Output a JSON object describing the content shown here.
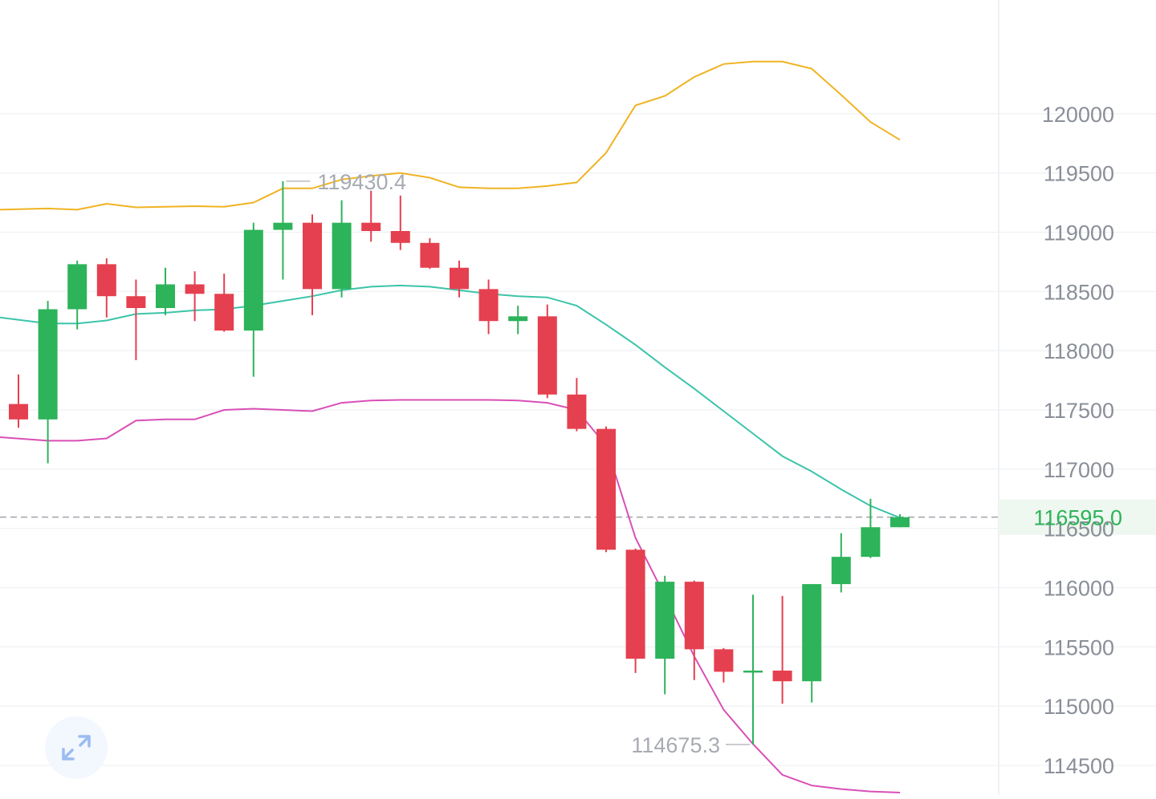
{
  "chart_data": {
    "type": "candlestick",
    "y_axis": {
      "ticks": [
        114500,
        115000,
        115500,
        116000,
        116500,
        117000,
        117500,
        118000,
        118500,
        119000,
        119500,
        120000
      ],
      "tick_labels": [
        "114500",
        "115000",
        "115500",
        "116000",
        "116500",
        "117000",
        "117500",
        "118000",
        "118500",
        "119000",
        "119500",
        "120000"
      ],
      "position": "right",
      "ylim": [
        114250,
        120960
      ]
    },
    "current_price": {
      "value": 116595.0,
      "label": "116595.0",
      "color": "#2db35a"
    },
    "high_marker": {
      "value": 119430.4,
      "label": "119430.4",
      "candle_index": 9
    },
    "low_marker": {
      "value": 114675.3,
      "label": "114675.3",
      "candle_index": 25
    },
    "colors": {
      "up": "#2db35a",
      "down": "#e5404f",
      "upper_band": "#f0b323",
      "middle_band": "#3cc4a9",
      "lower_band": "#d94fb7",
      "grid": "#eef0f3"
    },
    "candles": [
      {
        "o": 117550,
        "h": 117800,
        "l": 117350,
        "c": 117420
      },
      {
        "o": 117420,
        "h": 118420,
        "l": 117050,
        "c": 118350
      },
      {
        "o": 118350,
        "h": 118760,
        "l": 118180,
        "c": 118730
      },
      {
        "o": 118730,
        "h": 118780,
        "l": 118280,
        "c": 118460
      },
      {
        "o": 118460,
        "h": 118600,
        "l": 117920,
        "c": 118360
      },
      {
        "o": 118360,
        "h": 118700,
        "l": 118300,
        "c": 118560
      },
      {
        "o": 118560,
        "h": 118670,
        "l": 118250,
        "c": 118480
      },
      {
        "o": 118480,
        "h": 118650,
        "l": 118160,
        "c": 118170
      },
      {
        "o": 118170,
        "h": 119080,
        "l": 117780,
        "c": 119020
      },
      {
        "o": 119020,
        "h": 119430.4,
        "l": 118600,
        "c": 119080
      },
      {
        "o": 119080,
        "h": 119150,
        "l": 118300,
        "c": 118520
      },
      {
        "o": 118520,
        "h": 119270,
        "l": 118450,
        "c": 119080
      },
      {
        "o": 119080,
        "h": 119350,
        "l": 118920,
        "c": 119010
      },
      {
        "o": 119010,
        "h": 119310,
        "l": 118850,
        "c": 118910
      },
      {
        "o": 118910,
        "h": 118950,
        "l": 118690,
        "c": 118700
      },
      {
        "o": 118700,
        "h": 118760,
        "l": 118450,
        "c": 118520
      },
      {
        "o": 118520,
        "h": 118600,
        "l": 118140,
        "c": 118250
      },
      {
        "o": 118250,
        "h": 118380,
        "l": 118140,
        "c": 118290
      },
      {
        "o": 118290,
        "h": 118390,
        "l": 117600,
        "c": 117630
      },
      {
        "o": 117630,
        "h": 117770,
        "l": 117320,
        "c": 117340
      },
      {
        "o": 117340,
        "h": 117360,
        "l": 116300,
        "c": 116320
      },
      {
        "o": 116320,
        "h": 116330,
        "l": 115280,
        "c": 115400
      },
      {
        "o": 115400,
        "h": 116100,
        "l": 115100,
        "c": 116050
      },
      {
        "o": 116050,
        "h": 116060,
        "l": 115220,
        "c": 115480
      },
      {
        "o": 115480,
        "h": 115490,
        "l": 115200,
        "c": 115290
      },
      {
        "o": 115290,
        "h": 115940,
        "l": 114675.3,
        "c": 115300
      },
      {
        "o": 115300,
        "h": 115930,
        "l": 115020,
        "c": 115210
      },
      {
        "o": 115210,
        "h": 116030,
        "l": 115030,
        "c": 116030
      },
      {
        "o": 116030,
        "h": 116460,
        "l": 115960,
        "c": 116260
      },
      {
        "o": 116260,
        "h": 116750,
        "l": 116250,
        "c": 116510
      },
      {
        "o": 116510,
        "h": 116620,
        "l": 116510,
        "c": 116595
      }
    ],
    "upper_band": [
      119190,
      119200,
      119190,
      119240,
      119210,
      119215,
      119220,
      119215,
      119250,
      119370,
      119370,
      119445,
      119475,
      119500,
      119460,
      119380,
      119370,
      119370,
      119390,
      119420,
      119670,
      120070,
      120150,
      120310,
      120420,
      120440,
      120440,
      120380,
      120160,
      119930,
      119780
    ],
    "middle_band": [
      118280,
      118230,
      118230,
      118255,
      118310,
      118320,
      118340,
      118350,
      118380,
      118420,
      118460,
      118510,
      118540,
      118550,
      118540,
      118510,
      118480,
      118460,
      118450,
      118380,
      118220,
      118050,
      117860,
      117680,
      117490,
      117300,
      117110,
      116980,
      116830,
      116690,
      116590
    ],
    "lower_band": [
      117270,
      117240,
      117240,
      117260,
      117410,
      117420,
      117420,
      117500,
      117510,
      117500,
      117490,
      117560,
      117580,
      117585,
      117585,
      117585,
      117585,
      117580,
      117560,
      117500,
      117200,
      116420,
      115930,
      115420,
      114970,
      114680,
      114420,
      114330,
      114300,
      114280,
      114270
    ]
  },
  "controls": {
    "expand_icon": "expand-arrows-icon"
  }
}
